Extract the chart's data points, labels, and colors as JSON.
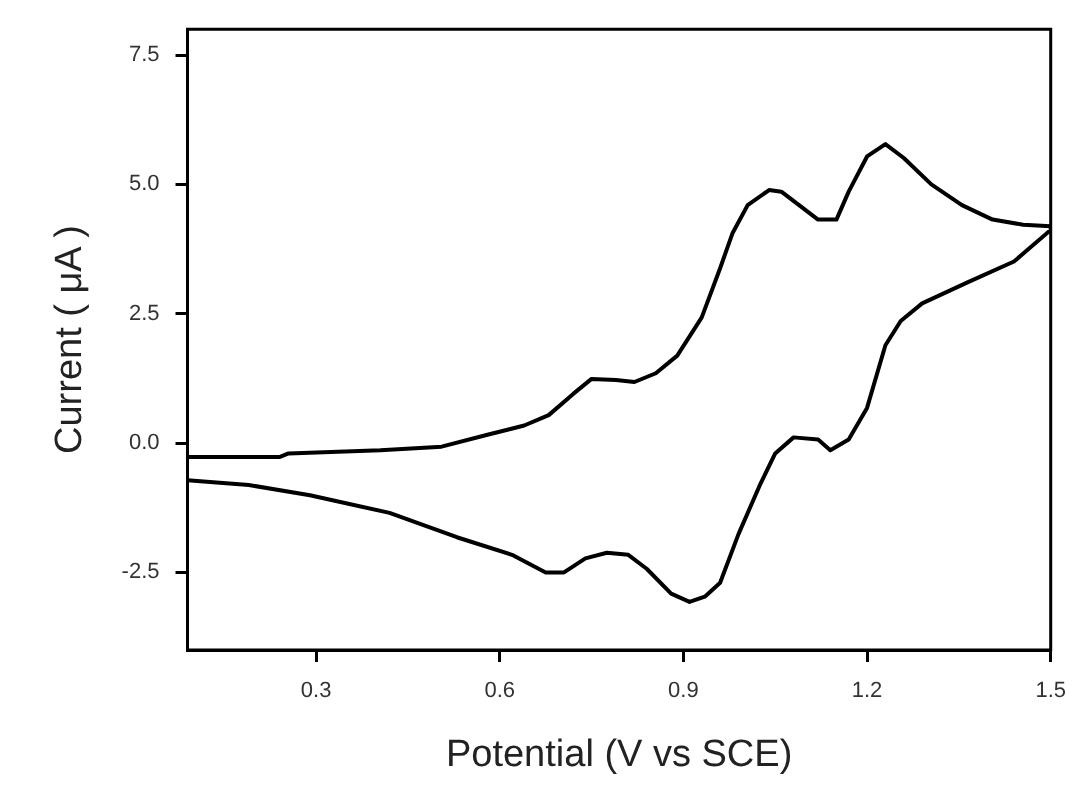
{
  "chart_data": {
    "type": "line",
    "xlabel": "Potential (V vs SCE)",
    "ylabel": "Current ( μA )",
    "xlim": [
      0.09,
      1.5
    ],
    "ylim": [
      -4,
      8
    ],
    "xticks": [
      0.3,
      0.6,
      0.9,
      1.2,
      1.5
    ],
    "yticks": [
      -2.5,
      {
        "value": 0,
        "label": "0.0"
      },
      2.5,
      {
        "value": 5,
        "label": "5.0"
      },
      7.5
    ],
    "grid": false,
    "legend": false,
    "marker": "none",
    "line_style": "solid",
    "series": [
      {
        "color": "#000000",
        "x": [
          0.09,
          0.24,
          0.255,
          0.405,
          0.505,
          0.58,
          0.64,
          0.68,
          0.72,
          0.75,
          0.79,
          0.82,
          0.855,
          0.89,
          0.93,
          0.96,
          0.98,
          1.005,
          1.04,
          1.06,
          1.12,
          1.15,
          1.17,
          1.2,
          1.23,
          1.26,
          1.305,
          1.355,
          1.405,
          1.455,
          1.5,
          1.5,
          1.44,
          1.365,
          1.29,
          1.255,
          1.23,
          1.2,
          1.17,
          1.14,
          1.12,
          1.08,
          1.05,
          1.025,
          0.99,
          0.96,
          0.935,
          0.91,
          0.88,
          0.84,
          0.81,
          0.775,
          0.74,
          0.705,
          0.675,
          0.62,
          0.53,
          0.42,
          0.29,
          0.19,
          0.09
        ],
        "values": [
          -0.27,
          -0.27,
          -0.2,
          -0.14,
          -0.07,
          0.16,
          0.34,
          0.54,
          0.95,
          1.24,
          1.22,
          1.18,
          1.35,
          1.69,
          2.43,
          3.38,
          4.05,
          4.6,
          4.89,
          4.86,
          4.32,
          4.32,
          4.86,
          5.54,
          5.78,
          5.51,
          5.0,
          4.6,
          4.32,
          4.22,
          4.19,
          4.12,
          3.51,
          3.11,
          2.7,
          2.36,
          1.89,
          0.68,
          0.07,
          -0.14,
          0.07,
          0.11,
          -0.2,
          -0.81,
          -1.76,
          -2.7,
          -2.97,
          -3.07,
          -2.91,
          -2.43,
          -2.16,
          -2.12,
          -2.23,
          -2.5,
          -2.5,
          -2.16,
          -1.82,
          -1.35,
          -1.01,
          -0.81,
          -0.72
        ]
      }
    ]
  }
}
